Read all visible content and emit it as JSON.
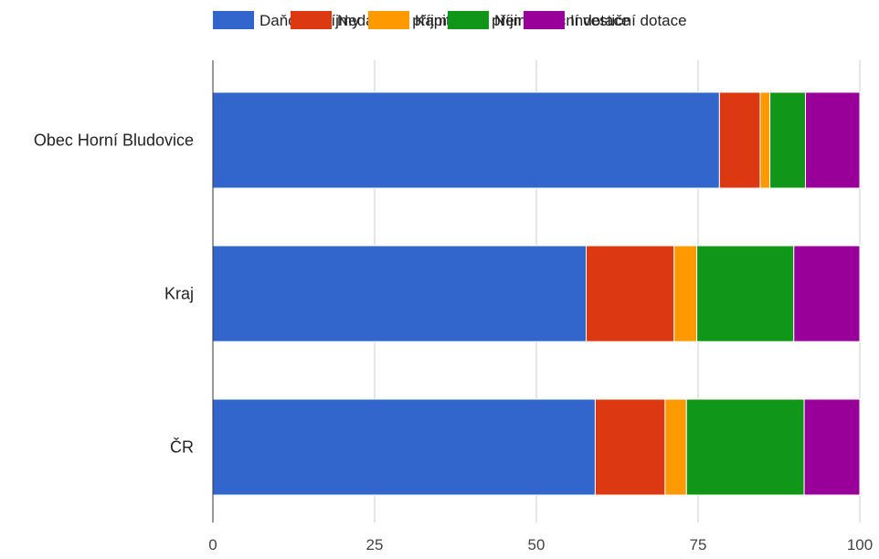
{
  "chart_data": {
    "type": "bar",
    "orientation": "horizontal",
    "stacked": true,
    "title": "",
    "xlabel": "",
    "ylabel": "",
    "xlim": [
      0,
      100
    ],
    "x_ticks": [
      0,
      25,
      50,
      75,
      100
    ],
    "grid": true,
    "legend_position": "top",
    "categories": [
      "Obec Horní Bludovice",
      "Kraj",
      "ČR"
    ],
    "series": [
      {
        "name": "Daňové příjmy",
        "color": "#3366cc",
        "values": [
          78.3,
          57.7,
          59.1
        ]
      },
      {
        "name": "Nedaňové příjmy",
        "color": "#dc3912",
        "values": [
          6.3,
          13.6,
          10.8
        ]
      },
      {
        "name": "Kapitálové příjmy",
        "color": "#ff9900",
        "values": [
          1.5,
          3.5,
          3.3
        ]
      },
      {
        "name": "Neinvestiční dotace",
        "color": "#109618",
        "values": [
          5.5,
          15.0,
          18.2
        ]
      },
      {
        "name": "Investiční dotace",
        "color": "#990099",
        "values": [
          8.4,
          10.2,
          8.6
        ]
      }
    ]
  }
}
